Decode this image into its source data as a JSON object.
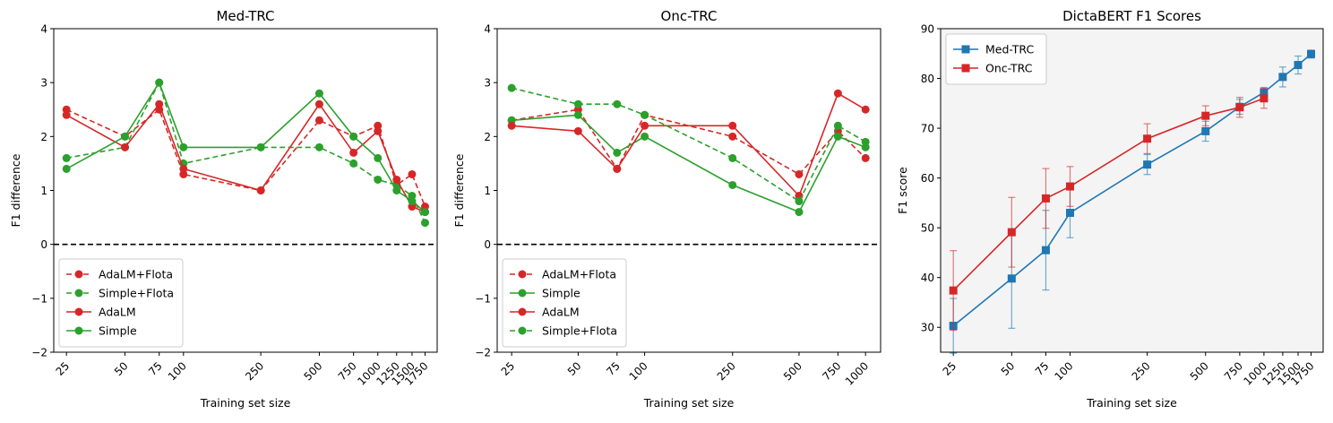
{
  "chart_data": [
    {
      "type": "line",
      "title": "Med-TRC",
      "xlabel": "Training set size",
      "ylabel": "F1 difference",
      "xscale": "log",
      "xlim": [
        21.5,
        2020
      ],
      "ylim": [
        -2,
        4
      ],
      "xticks": [
        25,
        50,
        75,
        100,
        250,
        500,
        750,
        1000,
        1250,
        1500,
        1750
      ],
      "xtick_labels": [
        "25",
        "50",
        "75",
        "100",
        "250",
        "500",
        "750",
        "1000",
        "1250",
        "1500",
        "1750"
      ],
      "yticks": [
        -2,
        -1,
        0,
        1,
        2,
        3,
        4
      ],
      "ytick_labels": [
        "−2",
        "−1",
        "0",
        "1",
        "2",
        "3",
        "4"
      ],
      "reference_line": 0,
      "legend_position": "lower-left",
      "series": [
        {
          "name": "AdaLM+Flota",
          "color": "#d62728",
          "style": "dashed",
          "x": [
            25,
            50,
            75,
            100,
            250,
            500,
            750,
            1000,
            1250,
            1500,
            1750
          ],
          "y": [
            2.5,
            2.0,
            2.5,
            1.3,
            1.0,
            2.3,
            2.0,
            2.2,
            1.1,
            1.3,
            0.7
          ]
        },
        {
          "name": "Simple+Flota",
          "color": "#2ca02c",
          "style": "dashed",
          "x": [
            25,
            50,
            75,
            100,
            250,
            500,
            750,
            1000,
            1250,
            1500,
            1750
          ],
          "y": [
            1.6,
            1.8,
            3.0,
            1.5,
            1.8,
            1.8,
            1.5,
            1.2,
            1.1,
            0.9,
            0.4
          ]
        },
        {
          "name": "AdaLM",
          "color": "#d62728",
          "style": "solid",
          "x": [
            25,
            50,
            75,
            100,
            250,
            500,
            750,
            1000,
            1250,
            1500,
            1750
          ],
          "y": [
            2.4,
            1.8,
            2.6,
            1.4,
            1.0,
            2.6,
            1.7,
            2.1,
            1.2,
            0.7,
            0.6
          ]
        },
        {
          "name": "Simple",
          "color": "#2ca02c",
          "style": "solid",
          "x": [
            25,
            50,
            75,
            100,
            250,
            500,
            750,
            1000,
            1250,
            1500,
            1750
          ],
          "y": [
            1.4,
            2.0,
            3.0,
            1.8,
            1.8,
            2.8,
            2.0,
            1.6,
            1.0,
            0.8,
            0.6
          ]
        }
      ]
    },
    {
      "type": "line",
      "title": "Onc-TRC",
      "xlabel": "Training set size",
      "ylabel": "F1 difference",
      "xscale": "log",
      "xlim": [
        21.5,
        1170
      ],
      "ylim": [
        -2,
        4
      ],
      "xticks": [
        25,
        50,
        75,
        100,
        250,
        500,
        750,
        1000
      ],
      "xtick_labels": [
        "25",
        "50",
        "75",
        "100",
        "250",
        "500",
        "750",
        "1000"
      ],
      "yticks": [
        -2,
        -1,
        0,
        1,
        2,
        3,
        4
      ],
      "ytick_labels": [
        "−2",
        "−1",
        "0",
        "1",
        "2",
        "3",
        "4"
      ],
      "reference_line": 0,
      "legend_position": "lower-left",
      "series": [
        {
          "name": "AdaLM+Flota",
          "color": "#d62728",
          "style": "dashed",
          "x": [
            25,
            50,
            75,
            100,
            250,
            500,
            750,
            1000
          ],
          "y": [
            2.3,
            2.5,
            1.4,
            2.4,
            2.0,
            1.3,
            2.1,
            1.6
          ]
        },
        {
          "name": "Simple",
          "color": "#2ca02c",
          "style": "solid",
          "x": [
            25,
            50,
            75,
            100,
            250,
            500,
            750,
            1000
          ],
          "y": [
            2.3,
            2.4,
            1.7,
            2.0,
            1.1,
            0.6,
            2.0,
            1.8
          ]
        },
        {
          "name": "AdaLM",
          "color": "#d62728",
          "style": "solid",
          "x": [
            25,
            50,
            75,
            100,
            250,
            500,
            750,
            1000
          ],
          "y": [
            2.2,
            2.1,
            1.4,
            2.2,
            2.2,
            0.9,
            2.8,
            2.5
          ]
        },
        {
          "name": "Simple+Flota",
          "color": "#2ca02c",
          "style": "dashed",
          "x": [
            25,
            50,
            75,
            100,
            250,
            500,
            750,
            1000
          ],
          "y": [
            2.9,
            2.6,
            2.6,
            2.4,
            1.6,
            0.8,
            2.2,
            1.9
          ]
        }
      ]
    },
    {
      "type": "line",
      "title": "DictaBERT F1 Scores",
      "xlabel": "Training set size",
      "ylabel": "F1 score",
      "xscale": "log",
      "xlim": [
        21.5,
        2020
      ],
      "ylim": [
        25,
        90
      ],
      "xticks": [
        25,
        50,
        75,
        100,
        250,
        500,
        750,
        1000,
        1250,
        1500,
        1750
      ],
      "xtick_labels": [
        "25",
        "50",
        "75",
        "100",
        "250",
        "500",
        "750",
        "1000",
        "1250",
        "1500",
        "1750"
      ],
      "yticks": [
        30,
        40,
        50,
        60,
        70,
        80,
        90
      ],
      "ytick_labels": [
        "30",
        "40",
        "50",
        "60",
        "70",
        "80",
        "90"
      ],
      "grid": false,
      "background": "#f4f4f4",
      "legend_position": "top-left",
      "series": [
        {
          "name": "Med-TRC",
          "color": "#1f77b4",
          "marker": "square",
          "x": [
            25,
            50,
            75,
            100,
            250,
            500,
            750,
            1000,
            1250,
            1500,
            1750
          ],
          "y": [
            30.3,
            39.8,
            45.5,
            53.0,
            62.7,
            69.4,
            74.3,
            77.2,
            80.3,
            82.7,
            84.9
          ],
          "err": [
            5.5,
            10.0,
            8.0,
            5.0,
            2.0,
            2.0,
            1.5,
            1.0,
            2.0,
            1.8,
            0.8
          ]
        },
        {
          "name": "Onc-TRC",
          "color": "#d62728",
          "marker": "square",
          "x": [
            25,
            50,
            75,
            100,
            250,
            500,
            750,
            1000
          ],
          "y": [
            37.4,
            49.1,
            55.9,
            58.3,
            67.9,
            72.5,
            74.2,
            76.0
          ],
          "err": [
            8.0,
            7.0,
            6.0,
            4.0,
            3.0,
            2.0,
            2.0,
            2.0
          ]
        }
      ]
    }
  ]
}
